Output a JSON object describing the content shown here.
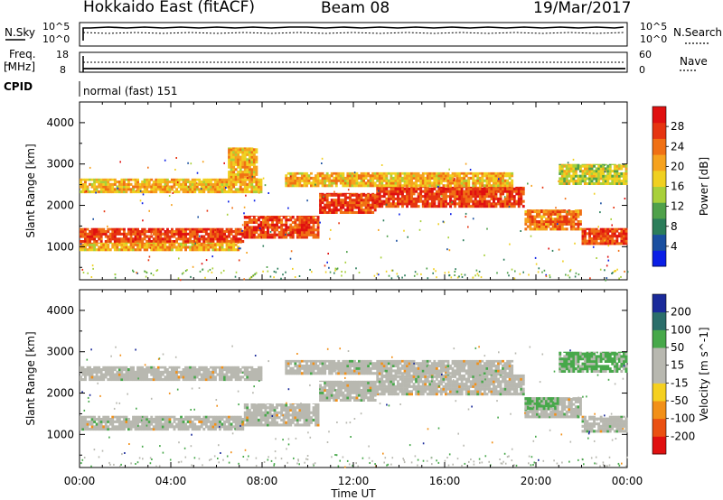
{
  "header": {
    "title": "Hokkaido East (fitACF)",
    "beam": "Beam 08",
    "date": "19/Mar/2017"
  },
  "top_panels": {
    "nsky_label": "N.Sky",
    "nsearch_label": "N.Search",
    "noise_ticks_left": [
      "10^5",
      "10^0"
    ],
    "noise_ticks_right": [
      "10^5",
      "10^0"
    ],
    "freq_label": "Freq.",
    "freq_unit": "[MHz]",
    "freq_ticks": [
      "18",
      "8"
    ],
    "nave_label": "Nave",
    "nave_ticks": [
      "60",
      "0"
    ],
    "cpid_label": "CPID",
    "cpid_value": "normal (fast) 151"
  },
  "chart_data": [
    {
      "type": "heatmap",
      "name": "power",
      "xlabel": "Time UT",
      "ylabel": "Slant Range [km]",
      "xlim": [
        "00:00",
        "24:00"
      ],
      "ylim": [
        200,
        4500
      ],
      "x_ticks": [
        "00:00",
        "04:00",
        "08:00",
        "12:00",
        "16:00",
        "20:00",
        "00:00"
      ],
      "y_ticks": [
        1000,
        2000,
        3000,
        4000
      ],
      "colorbar": {
        "label": "Power [dB]",
        "ticks": [
          4,
          8,
          12,
          16,
          20,
          24,
          28
        ],
        "colors": [
          "#0a1ee6",
          "#1a4fa0",
          "#2b7d5a",
          "#4fa14a",
          "#a8d03a",
          "#f0d020",
          "#f6a21e",
          "#f07014",
          "#e63410",
          "#e01010"
        ]
      },
      "bands": [
        {
          "t0": 0.0,
          "t1": 7.2,
          "r0": 1100,
          "r1": 1450,
          "level": 28
        },
        {
          "t0": 7.2,
          "t1": 10.5,
          "r0": 1200,
          "r1": 1750,
          "level": 28
        },
        {
          "t0": 10.5,
          "t1": 13.0,
          "r0": 1800,
          "r1": 2300,
          "level": 28
        },
        {
          "t0": 13.0,
          "t1": 19.5,
          "r0": 1950,
          "r1": 2450,
          "level": 28
        },
        {
          "t0": 19.5,
          "t1": 22.0,
          "r0": 1400,
          "r1": 1900,
          "level": 24
        },
        {
          "t0": 22.0,
          "t1": 24.0,
          "r0": 1050,
          "r1": 1450,
          "level": 28
        },
        {
          "t0": 0.0,
          "t1": 8.0,
          "r0": 2300,
          "r1": 2650,
          "level": 20
        },
        {
          "t0": 9.0,
          "t1": 19.0,
          "r0": 2450,
          "r1": 2800,
          "level": 20
        },
        {
          "t0": 21.0,
          "t1": 24.0,
          "r0": 2500,
          "r1": 3000,
          "level": 16
        },
        {
          "t0": 0.0,
          "t1": 7.0,
          "r0": 900,
          "r1": 1100,
          "level": 20
        },
        {
          "t0": 6.5,
          "t1": 7.8,
          "r0": 2600,
          "r1": 3400,
          "level": 20
        }
      ]
    },
    {
      "type": "heatmap",
      "name": "velocity",
      "xlabel": "Time UT",
      "ylabel": "Slant Range [km]",
      "xlim": [
        "00:00",
        "24:00"
      ],
      "ylim": [
        200,
        4500
      ],
      "x_ticks": [
        "00:00",
        "04:00",
        "08:00",
        "12:00",
        "16:00",
        "20:00",
        "00:00"
      ],
      "y_ticks": [
        1000,
        2000,
        3000,
        4000
      ],
      "colorbar": {
        "label": "Velocity [m s^-1]",
        "ticks": [
          200,
          100,
          50,
          15,
          -15,
          -50,
          -100,
          -200
        ],
        "colors": [
          "#1a2a9a",
          "#2b6e6a",
          "#47a84a",
          "#b8b8b0",
          "#b8b8b0",
          "#f5d020",
          "#f29018",
          "#ea5012",
          "#e01010"
        ]
      },
      "bands": [
        {
          "t0": 0.0,
          "t1": 7.2,
          "r0": 1100,
          "r1": 1450,
          "level": 0
        },
        {
          "t0": 7.2,
          "t1": 10.5,
          "r0": 1200,
          "r1": 1750,
          "level": 0
        },
        {
          "t0": 10.5,
          "t1": 13.0,
          "r0": 1800,
          "r1": 2300,
          "level": 0
        },
        {
          "t0": 13.0,
          "t1": 19.5,
          "r0": 1950,
          "r1": 2450,
          "level": 0
        },
        {
          "t0": 19.5,
          "t1": 22.0,
          "r0": 1400,
          "r1": 1900,
          "level": 0
        },
        {
          "t0": 22.0,
          "t1": 24.0,
          "r0": 1050,
          "r1": 1450,
          "level": 0
        },
        {
          "t0": 0.0,
          "t1": 8.0,
          "r0": 2300,
          "r1": 2650,
          "level": 0
        },
        {
          "t0": 9.0,
          "t1": 19.0,
          "r0": 2450,
          "r1": 2800,
          "level": 0
        },
        {
          "t0": 21.0,
          "t1": 24.0,
          "r0": 2500,
          "r1": 3000,
          "level": 40
        },
        {
          "t0": 19.5,
          "t1": 21.0,
          "r0": 1600,
          "r1": 1900,
          "level": 40
        }
      ]
    }
  ]
}
